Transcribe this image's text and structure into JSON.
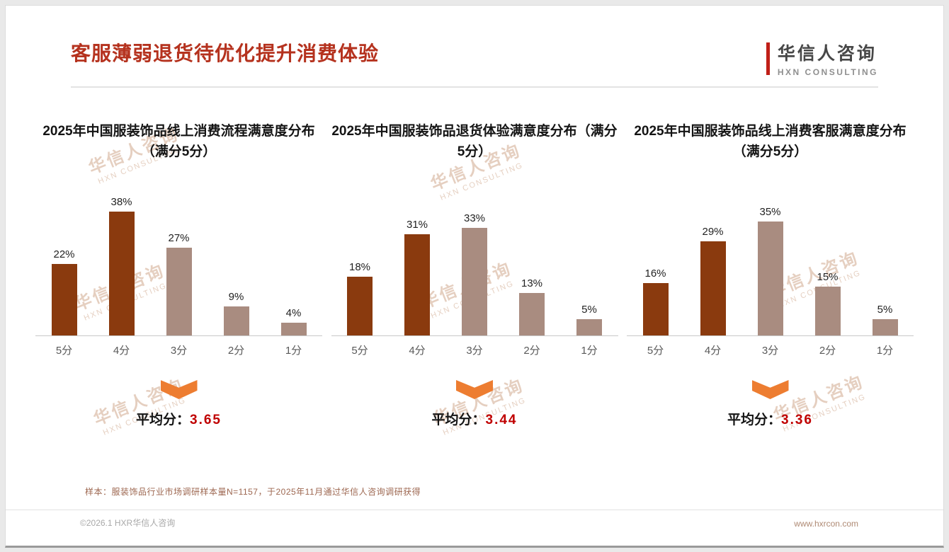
{
  "header": {
    "title": "客服薄弱退货待优化提升消费体验",
    "logo_name": "华信人咨询",
    "logo_sub": "HXN CONSULTING"
  },
  "watermark": {
    "text": "华信人咨询",
    "sub": "HXN CONSULTING"
  },
  "chart_data": [
    {
      "type": "bar",
      "title": "2025年中国服装饰品线上消费流程满意度分布（满分5分）",
      "categories": [
        "5分",
        "4分",
        "3分",
        "2分",
        "1分"
      ],
      "values": [
        22,
        38,
        27,
        9,
        4
      ],
      "value_labels": [
        "22%",
        "38%",
        "27%",
        "9%",
        "4%"
      ],
      "bar_colors": [
        "#8a3a0e",
        "#8a3a0e",
        "#a98c80",
        "#a98c80",
        "#a98c80"
      ],
      "ylim": [
        0,
        40
      ],
      "legend": "none",
      "grid": "off",
      "average_label": "平均分：",
      "average_value": "3.65"
    },
    {
      "type": "bar",
      "title": "2025年中国服装饰品退货体验满意度分布（满分5分）",
      "categories": [
        "5分",
        "4分",
        "3分",
        "2分",
        "1分"
      ],
      "values": [
        18,
        31,
        33,
        13,
        5
      ],
      "value_labels": [
        "18%",
        "31%",
        "33%",
        "13%",
        "5%"
      ],
      "bar_colors": [
        "#8a3a0e",
        "#8a3a0e",
        "#a98c80",
        "#a98c80",
        "#a98c80"
      ],
      "ylim": [
        0,
        40
      ],
      "legend": "none",
      "grid": "off",
      "average_label": "平均分：",
      "average_value": "3.44"
    },
    {
      "type": "bar",
      "title": "2025年中国服装饰品线上消费客服满意度分布（满分5分）",
      "categories": [
        "5分",
        "4分",
        "3分",
        "2分",
        "1分"
      ],
      "values": [
        16,
        29,
        35,
        15,
        5
      ],
      "value_labels": [
        "16%",
        "29%",
        "35%",
        "15%",
        "5%"
      ],
      "bar_colors": [
        "#8a3a0e",
        "#8a3a0e",
        "#a98c80",
        "#a98c80",
        "#a98c80"
      ],
      "ylim": [
        0,
        40
      ],
      "legend": "none",
      "grid": "off",
      "average_label": "平均分：",
      "average_value": "3.36"
    }
  ],
  "colors": {
    "title_red": "#b5321e",
    "bar_dark": "#8a3a0e",
    "bar_light": "#a98c80",
    "arrow_orange": "#ed7d31",
    "average_red": "#c00000"
  },
  "footer": {
    "note": "样本：服装饰品行业市场调研样本量N=1157，于2025年11月通过华信人咨询调研获得",
    "left": "©2026.1 HXR华信人咨询",
    "right": "www.hxrcon.com"
  }
}
